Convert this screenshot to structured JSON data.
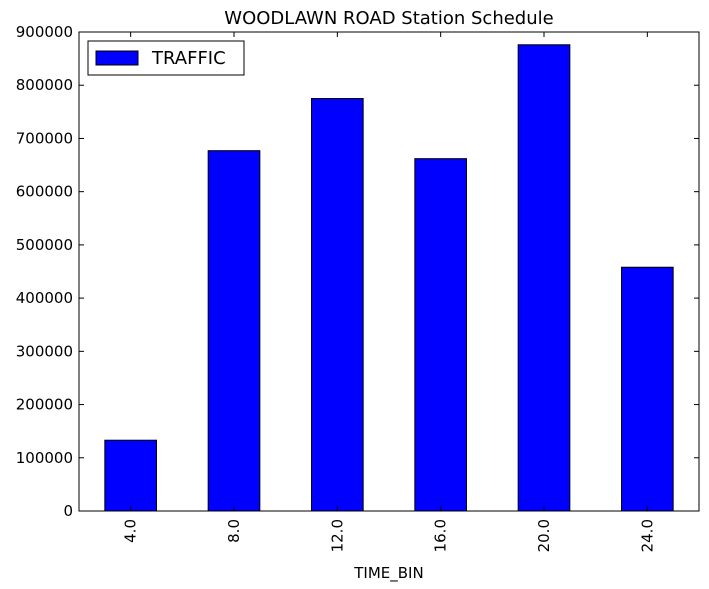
{
  "chart_data": {
    "type": "bar",
    "title": "WOODLAWN ROAD Station Schedule",
    "xlabel": "TIME_BIN",
    "ylabel": "",
    "categories": [
      "4.0",
      "8.0",
      "12.0",
      "16.0",
      "20.0",
      "24.0"
    ],
    "series": [
      {
        "name": "TRAFFIC",
        "values": [
          133000,
          677000,
          775000,
          662000,
          876000,
          458000
        ],
        "color": "#0000ff"
      }
    ],
    "ylim": [
      0,
      900000
    ],
    "yticks": [
      0,
      100000,
      200000,
      300000,
      400000,
      500000,
      600000,
      700000,
      800000,
      900000
    ],
    "ytick_labels": [
      "0",
      "100000",
      "200000",
      "300000",
      "400000",
      "500000",
      "600000",
      "700000",
      "800000",
      "900000"
    ],
    "legend_position": "top-left",
    "grid": false
  }
}
